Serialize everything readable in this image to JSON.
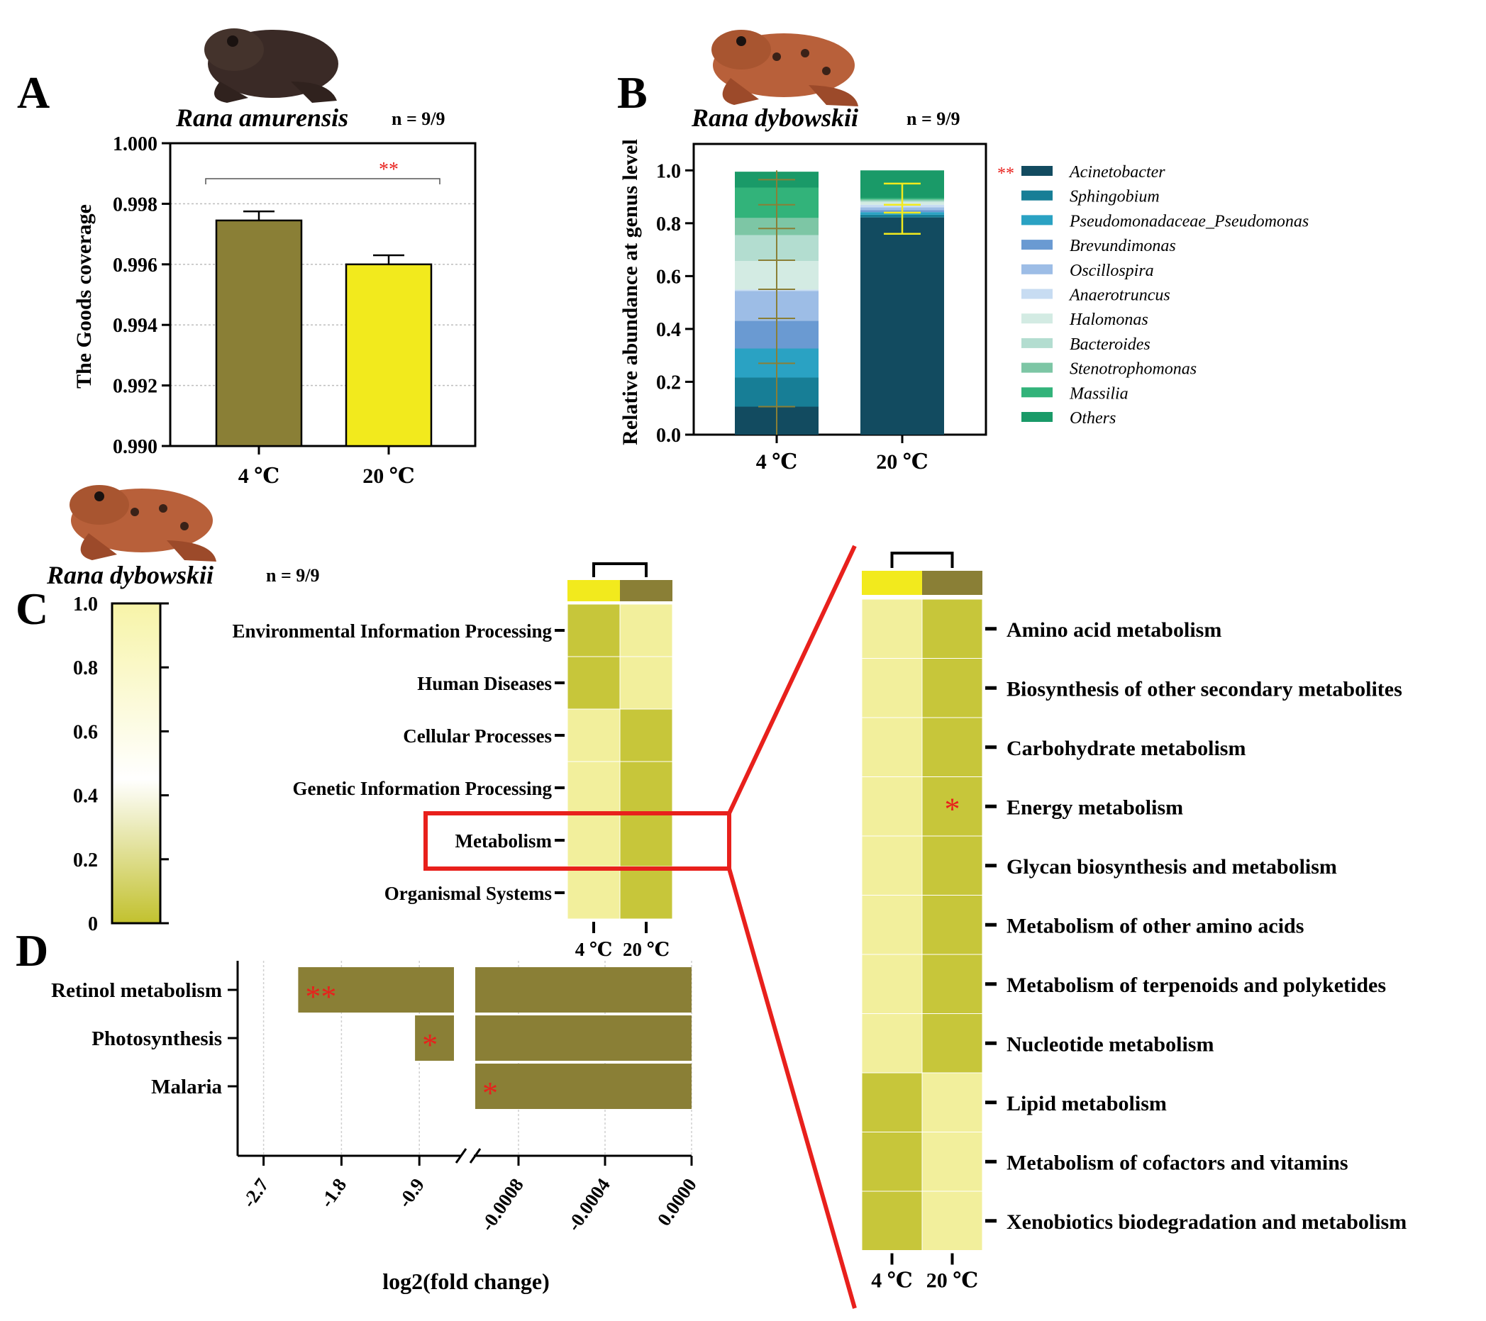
{
  "colors": {
    "olive": "#8a7f36",
    "yellow": "#f2ea1d",
    "heat_low": "#c2c12e",
    "heat_high": "#f7f4a8",
    "sig_red": "#e8201c",
    "highlight_red": "#e8201c",
    "frog_brown": "#3a2a26",
    "frog_orange": "#b8603a"
  },
  "icons": [
    "frog-photo-rana-amurensis",
    "frog-photo-rana-dybowskii"
  ],
  "panelA": {
    "letter": "A",
    "species": "Rana amurensis",
    "n": "n = 9/9",
    "sig": "**",
    "chart_data": {
      "type": "bar",
      "categories": [
        "4 ℃",
        "20 ℃"
      ],
      "values": [
        0.99745,
        0.996
      ],
      "errors": [
        0.0003,
        0.0003
      ],
      "colors": [
        "#8a7f36",
        "#f2ea1d"
      ],
      "ylabel": "The Goods coverage",
      "ylim": [
        0.99,
        1.0
      ],
      "yticks": [
        "0.990",
        "0.992",
        "0.994",
        "0.996",
        "0.998",
        "1.000"
      ],
      "grid": true
    }
  },
  "panelB": {
    "letter": "B",
    "species": "Rana dybowskii",
    "n": "n = 9/9",
    "chart_data": {
      "type": "bar",
      "stacked": true,
      "categories": [
        "4 ℃",
        "20 ℃"
      ],
      "ylabel": "Relative abundance at genus level",
      "ylim": [
        0,
        1.0
      ],
      "yticks": [
        "0.0",
        "0.2",
        "0.4",
        "0.6",
        "0.8",
        "1.0"
      ],
      "series": [
        {
          "name": "Acinetobacter",
          "color": "#124b60",
          "values": [
            0.106,
            0.822
          ],
          "sig": "**"
        },
        {
          "name": "Sphingobium",
          "color": "#177e96",
          "values": [
            0.11,
            0.01
          ]
        },
        {
          "name": "Pseudomonadaceae_Pseudomonas",
          "color": "#2aa2c3",
          "values": [
            0.11,
            0.01
          ]
        },
        {
          "name": "Brevundimonas",
          "color": "#6a9ad2",
          "values": [
            0.105,
            0.008
          ]
        },
        {
          "name": "Oscillospira",
          "color": "#9dbde6",
          "values": [
            0.113,
            0.01
          ]
        },
        {
          "name": "Anaerotruncus",
          "color": "#c7dcf2",
          "values": [
            0.005,
            0.01
          ]
        },
        {
          "name": "Halomonas",
          "color": "#d3ebe3",
          "values": [
            0.108,
            0.01
          ]
        },
        {
          "name": "Bacteroides",
          "color": "#b3ddd0",
          "values": [
            0.098,
            0.005
          ]
        },
        {
          "name": "Stenotrophomonas",
          "color": "#7dc6a5",
          "values": [
            0.065,
            0.005
          ]
        },
        {
          "name": "Massilia",
          "color": "#32b37a",
          "values": [
            0.115,
            0.005
          ]
        },
        {
          "name": "Others",
          "color": "#1a9a68",
          "values": [
            0.06,
            0.105
          ]
        }
      ],
      "error_center_4": [
        0.106,
        0.27,
        0.44,
        0.55,
        0.66,
        0.78,
        0.87,
        0.965
      ],
      "error_center_20": [
        0.85,
        0.88,
        0.94
      ],
      "legend_position": "right"
    }
  },
  "panelC": {
    "letter": "C",
    "species": "Rana dybowskii",
    "n": "n = 9/9",
    "colorbar_ticks": [
      "1.0",
      "0.8",
      "0.6",
      "0.4",
      "0.2",
      "0"
    ],
    "chart_data": {
      "type": "heatmap",
      "columns": [
        "4 ℃",
        "20 ℃"
      ],
      "column_colors": [
        "#f2ea1d",
        "#8a7f36"
      ],
      "rows": [
        "Environmental Information Processing",
        "Human Diseases",
        "Cellular Processes",
        "Genetic Information Processing",
        "Metabolism",
        "Organismal Systems"
      ],
      "values": [
        [
          0.1,
          0.9
        ],
        [
          0.1,
          0.9
        ],
        [
          0.9,
          0.1
        ],
        [
          0.9,
          0.1
        ],
        [
          0.9,
          0.1
        ],
        [
          0.9,
          0.1
        ]
      ],
      "vmin": 0,
      "vmax": 1.0
    },
    "detail": {
      "chart_data": {
        "type": "heatmap",
        "columns": [
          "4 ℃",
          "20 ℃"
        ],
        "column_colors": [
          "#f2ea1d",
          "#8a7f36"
        ],
        "rows": [
          "Amino acid metabolism",
          "Biosynthesis of other secondary metabolites",
          "Carbohydrate metabolism",
          "Energy metabolism",
          "Glycan biosynthesis and metabolism",
          "Metabolism of other amino acids",
          "Metabolism of terpenoids and polyketides",
          "Nucleotide metabolism",
          "Lipid metabolism",
          "Metabolism of cofactors and vitamins",
          "Xenobiotics biodegradation and metabolism"
        ],
        "values": [
          [
            0.9,
            0.1
          ],
          [
            0.9,
            0.1
          ],
          [
            0.9,
            0.1
          ],
          [
            0.9,
            0.1
          ],
          [
            0.9,
            0.1
          ],
          [
            0.9,
            0.1
          ],
          [
            0.9,
            0.1
          ],
          [
            0.9,
            0.1
          ],
          [
            0.1,
            0.9
          ],
          [
            0.1,
            0.9
          ],
          [
            0.1,
            0.9
          ]
        ],
        "sig": [
          [
            "",
            ""
          ],
          [
            "",
            ""
          ],
          [
            "",
            ""
          ],
          [
            "",
            "*"
          ],
          [
            "",
            ""
          ],
          [
            "",
            ""
          ],
          [
            "",
            ""
          ],
          [
            "",
            ""
          ],
          [
            "",
            ""
          ],
          [
            "",
            ""
          ],
          [
            "",
            ""
          ]
        ],
        "vmin": 0,
        "vmax": 1.0
      }
    }
  },
  "panelD": {
    "letter": "D",
    "chart_data": {
      "type": "bar",
      "orientation": "horizontal",
      "categories": [
        "Retinol metabolism",
        "Photosynthesis",
        "Malaria"
      ],
      "values": [
        -2.3,
        -0.95,
        -0.001
      ],
      "sig": [
        "**",
        "*",
        "*"
      ],
      "xlabel": "log2(fold change)",
      "broken_axis": true,
      "left_segment": {
        "range": [
          -3.0,
          -0.5
        ],
        "ticks": [
          "-2.7",
          "-1.8",
          "-0.9"
        ],
        "tick_values": [
          -2.7,
          -1.8,
          -0.9
        ]
      },
      "right_segment": {
        "range": [
          -0.001,
          0.0
        ],
        "ticks": [
          "-0.0008",
          "-0.0004",
          "0.0000"
        ],
        "tick_values": [
          -0.0008,
          -0.0004,
          0.0
        ]
      },
      "grid": true
    }
  }
}
